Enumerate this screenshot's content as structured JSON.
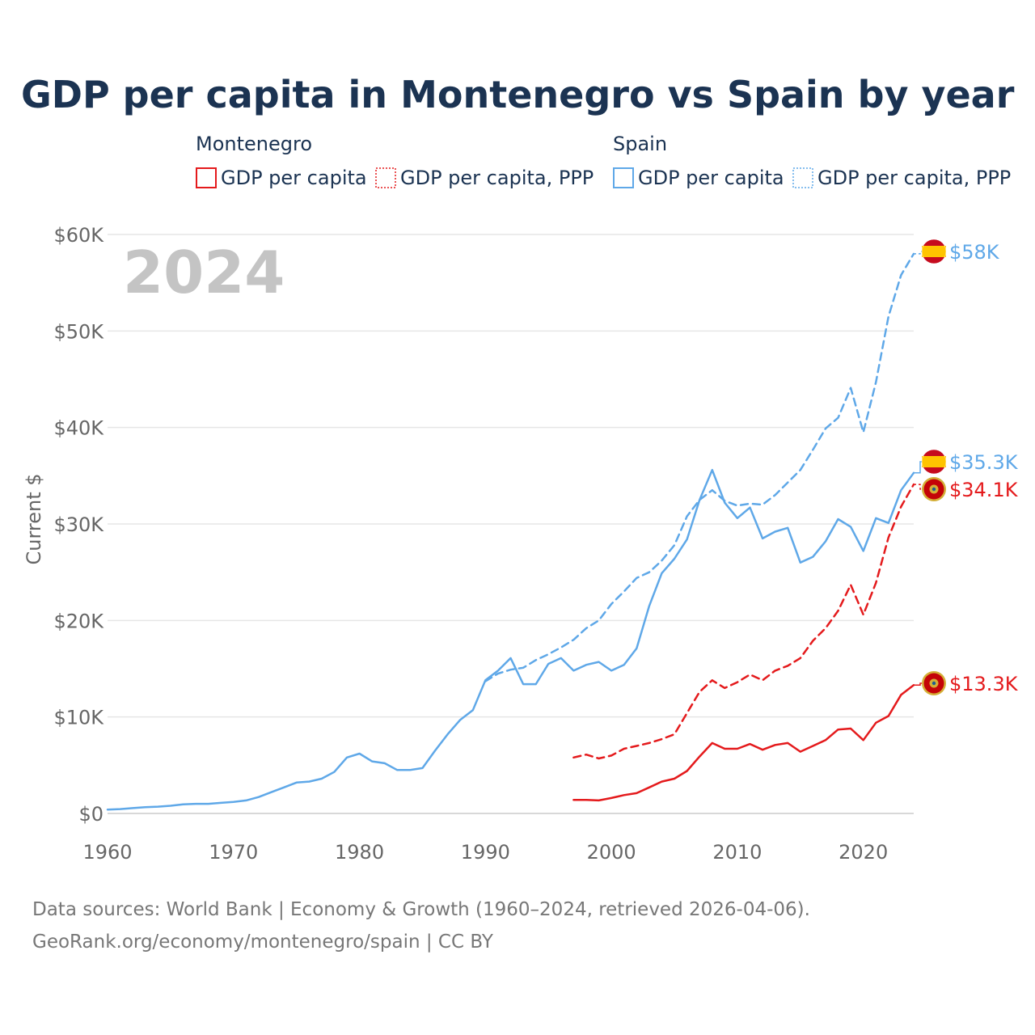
{
  "chart_data": {
    "type": "line",
    "title": "GDP per capita in Montenegro vs Spain by year",
    "year_watermark": "2024",
    "ylabel": "Current $",
    "xlabel": "",
    "xlim": [
      1960,
      2024
    ],
    "ylim": [
      0,
      60000
    ],
    "x_ticks": [
      1960,
      1970,
      1980,
      1990,
      2000,
      2010,
      2020
    ],
    "y_ticks": [
      0,
      10000,
      20000,
      30000,
      40000,
      50000,
      60000
    ],
    "y_tick_labels": [
      "$0",
      "$10K",
      "$20K",
      "$30K",
      "$40K",
      "$50K",
      "$60K"
    ],
    "grid": true,
    "legend": {
      "groups": [
        {
          "country": "Montenegro",
          "color": "#e41a1c",
          "items": [
            {
              "label": "GDP per capita",
              "style": "solid"
            },
            {
              "label": "GDP per capita, PPP",
              "style": "dashed"
            }
          ]
        },
        {
          "country": "Spain",
          "color": "#5fa8e8",
          "items": [
            {
              "label": "GDP per capita",
              "style": "solid"
            },
            {
              "label": "GDP per capita, PPP",
              "style": "dashed"
            }
          ]
        }
      ]
    },
    "series": [
      {
        "name": "Spain GDP per capita, PPP",
        "country": "Spain",
        "color": "#5fa8e8",
        "style": "dashed",
        "end_label": "$58K",
        "flag": "spain",
        "x": [
          1990,
          1991,
          1992,
          1993,
          1994,
          1995,
          1996,
          1997,
          1998,
          1999,
          2000,
          2001,
          2002,
          2003,
          2004,
          2005,
          2006,
          2007,
          2008,
          2009,
          2010,
          2011,
          2012,
          2013,
          2014,
          2015,
          2016,
          2017,
          2018,
          2019,
          2020,
          2021,
          2022,
          2023,
          2024
        ],
        "values": [
          13700,
          14500,
          14900,
          15100,
          15900,
          16500,
          17200,
          18000,
          19200,
          20000,
          21700,
          23000,
          24400,
          25000,
          26200,
          27800,
          30800,
          32500,
          33500,
          32400,
          31900,
          32100,
          32000,
          33000,
          34300,
          35600,
          37700,
          39900,
          41000,
          44100,
          39500,
          44700,
          51500,
          55800,
          58000
        ]
      },
      {
        "name": "Spain GDP per capita",
        "country": "Spain",
        "color": "#5fa8e8",
        "style": "solid",
        "end_label": "$35.3K",
        "flag": "spain",
        "x": [
          1960,
          1961,
          1962,
          1963,
          1964,
          1965,
          1966,
          1967,
          1968,
          1969,
          1970,
          1971,
          1972,
          1973,
          1974,
          1975,
          1976,
          1977,
          1978,
          1979,
          1980,
          1981,
          1982,
          1983,
          1984,
          1985,
          1986,
          1987,
          1988,
          1989,
          1990,
          1991,
          1992,
          1993,
          1994,
          1995,
          1996,
          1997,
          1998,
          1999,
          2000,
          2001,
          2002,
          2003,
          2004,
          2005,
          2006,
          2007,
          2008,
          2009,
          2010,
          2011,
          2012,
          2013,
          2014,
          2015,
          2016,
          2017,
          2018,
          2019,
          2020,
          2021,
          2022,
          2023,
          2024
        ],
        "values": [
          400,
          450,
          550,
          650,
          700,
          800,
          950,
          1000,
          1000,
          1100,
          1200,
          1350,
          1700,
          2200,
          2700,
          3200,
          3300,
          3600,
          4300,
          5800,
          6200,
          5400,
          5200,
          4500,
          4500,
          4700,
          6500,
          8200,
          9700,
          10700,
          13800,
          14800,
          16100,
          13400,
          13400,
          15500,
          16100,
          14800,
          15400,
          15700,
          14800,
          15400,
          17100,
          21500,
          24900,
          26400,
          28400,
          32500,
          35600,
          32200,
          30600,
          31700,
          28500,
          29200,
          29600,
          26000,
          26600,
          28200,
          30500,
          29700,
          27200,
          30600,
          30100,
          33500,
          35300
        ]
      },
      {
        "name": "Montenegro GDP per capita, PPP",
        "country": "Montenegro",
        "color": "#e41a1c",
        "style": "dashed",
        "end_label": "$34.1K",
        "flag": "montenegro",
        "x": [
          1997,
          1998,
          1999,
          2000,
          2001,
          2002,
          2003,
          2004,
          2005,
          2006,
          2007,
          2008,
          2009,
          2010,
          2011,
          2012,
          2013,
          2014,
          2015,
          2016,
          2017,
          2018,
          2019,
          2020,
          2021,
          2022,
          2023,
          2024
        ],
        "values": [
          5800,
          6100,
          5700,
          6000,
          6700,
          7000,
          7300,
          7700,
          8200,
          10400,
          12600,
          13800,
          13000,
          13600,
          14400,
          13800,
          14800,
          15300,
          16100,
          17900,
          19200,
          21000,
          23700,
          20600,
          23900,
          28600,
          31800,
          34100
        ]
      },
      {
        "name": "Montenegro GDP per capita",
        "country": "Montenegro",
        "color": "#e41a1c",
        "style": "solid",
        "end_label": "$13.3K",
        "flag": "montenegro",
        "x": [
          1997,
          1998,
          1999,
          2000,
          2001,
          2002,
          2003,
          2004,
          2005,
          2006,
          2007,
          2008,
          2009,
          2010,
          2011,
          2012,
          2013,
          2014,
          2015,
          2016,
          2017,
          2018,
          2019,
          2020,
          2021,
          2022,
          2023,
          2024
        ],
        "values": [
          1400,
          1400,
          1350,
          1600,
          1900,
          2100,
          2700,
          3300,
          3600,
          4400,
          5900,
          7300,
          6700,
          6700,
          7200,
          6600,
          7100,
          7300,
          6400,
          7000,
          7600,
          8700,
          8800,
          7600,
          9400,
          10100,
          12300,
          13300
        ]
      }
    ]
  },
  "footer": {
    "sources": "Data sources: World Bank | Economy & Growth (1960–2024, retrieved 2026-04-06).",
    "attribution": "GeoRank.org/economy/montenegro/spain | CC BY"
  }
}
